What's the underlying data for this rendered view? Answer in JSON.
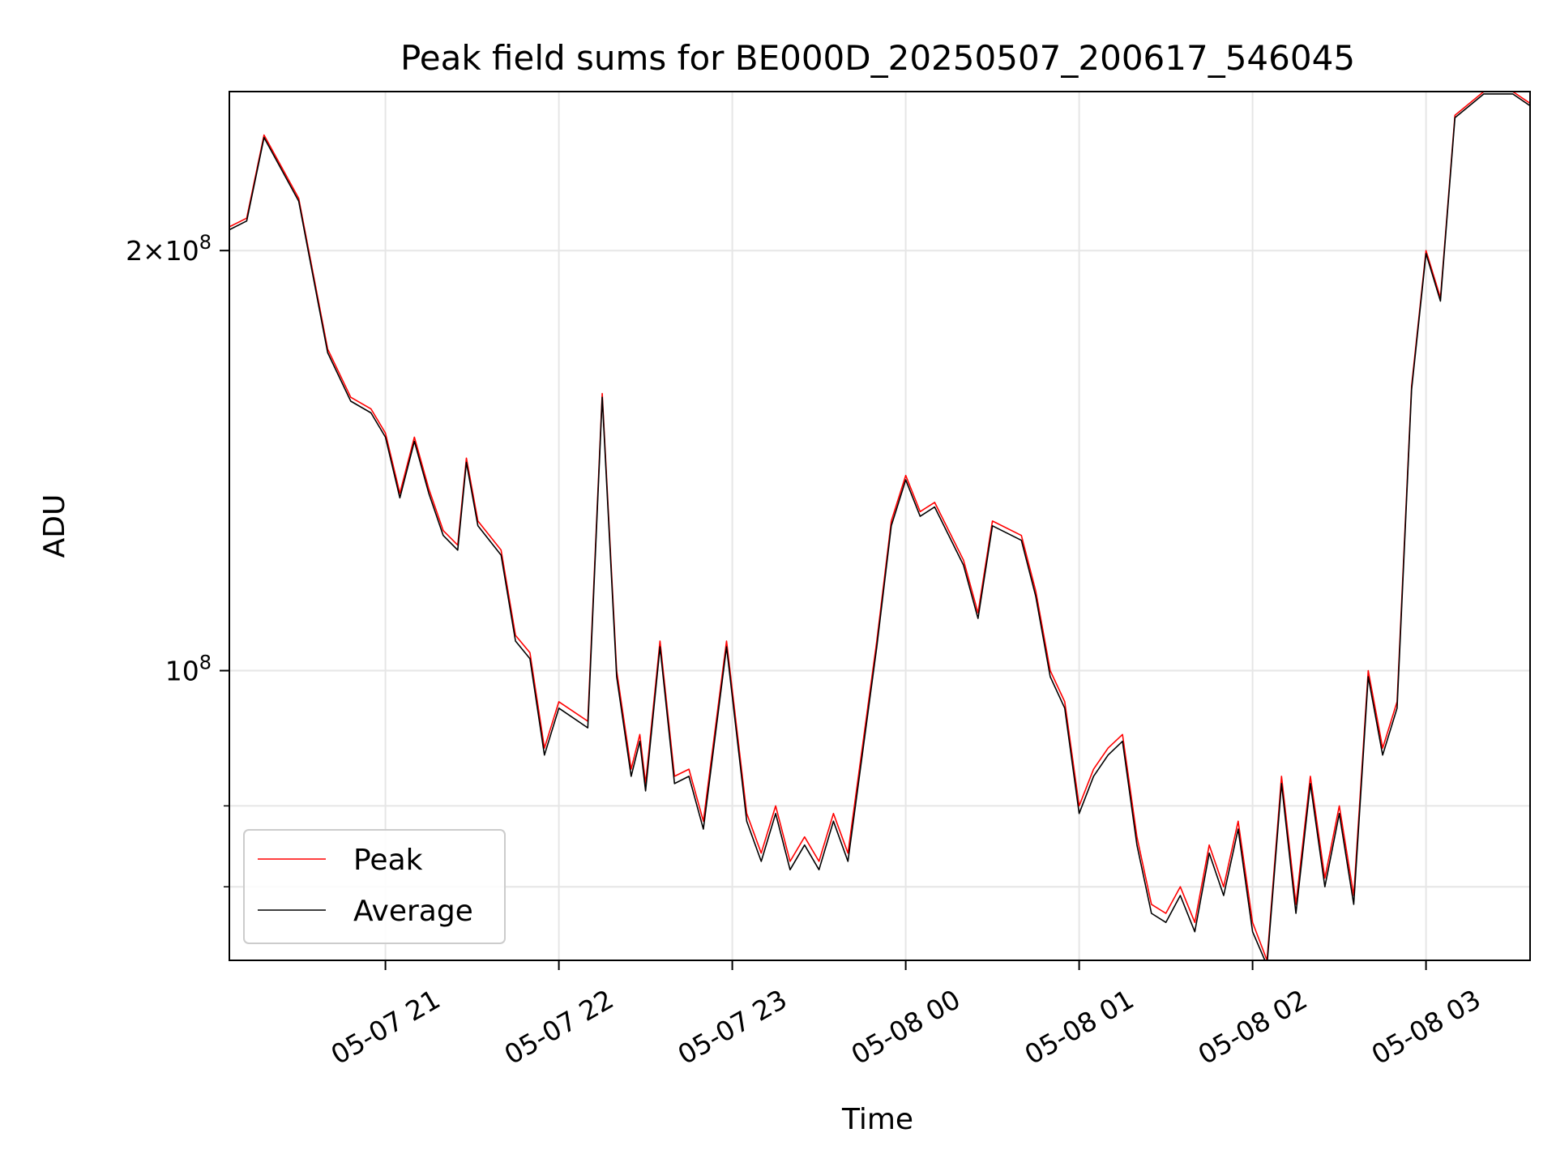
{
  "chart_data": {
    "type": "line",
    "title": "Peak field sums for BE000D_20250507_200617_546045",
    "xlabel": "Time",
    "ylabel": "ADU",
    "yscale": "log",
    "ylim": [
      62000000,
      260000000
    ],
    "xlim": [
      "2025-05-07 20:06",
      "2025-05-08 03:36"
    ],
    "grid": true,
    "legend_position": "lower-left",
    "x_ticks": [
      "05-07 21",
      "05-07 22",
      "05-07 23",
      "05-08 00",
      "05-08 01",
      "05-08 02",
      "05-08 03"
    ],
    "y_ticks": [
      {
        "value": 100000000,
        "base": "10",
        "exp": "8",
        "mantissa": ""
      },
      {
        "value": 200000000,
        "base": "10",
        "exp": "8",
        "mantissa": "2×"
      }
    ],
    "y_minor_ticks": [
      70000000,
      80000000
    ],
    "series": [
      {
        "name": "Peak",
        "color": "#ff0000"
      },
      {
        "name": "Average",
        "color": "#000000"
      }
    ],
    "x": [
      "20:06",
      "20:12",
      "20:18",
      "20:30",
      "20:40",
      "20:48",
      "20:55",
      "21:00",
      "21:05",
      "21:10",
      "21:15",
      "21:20",
      "21:25",
      "21:28",
      "21:32",
      "21:40",
      "21:45",
      "21:50",
      "21:55",
      "22:00",
      "22:10",
      "22:15",
      "22:20",
      "22:25",
      "22:28",
      "22:30",
      "22:35",
      "22:40",
      "22:45",
      "22:50",
      "22:58",
      "23:05",
      "23:10",
      "23:15",
      "23:20",
      "23:25",
      "23:30",
      "23:35",
      "23:40",
      "23:50",
      "23:55",
      "00:00",
      "00:05",
      "00:10",
      "00:20",
      "00:25",
      "00:30",
      "00:40",
      "00:45",
      "00:50",
      "00:55",
      "01:00",
      "01:05",
      "01:10",
      "01:15",
      "01:20",
      "01:25",
      "01:30",
      "01:35",
      "01:40",
      "01:45",
      "01:50",
      "01:55",
      "02:00",
      "02:05",
      "02:10",
      "02:15",
      "02:20",
      "02:25",
      "02:30",
      "02:35",
      "02:40",
      "02:45",
      "02:50",
      "02:55",
      "03:00",
      "03:05",
      "03:10",
      "03:20",
      "03:30",
      "03:36"
    ],
    "peak": [
      208000000,
      211000000,
      242000000,
      218000000,
      170000000,
      157000000,
      154000000,
      148000000,
      134000000,
      147000000,
      135000000,
      126000000,
      123000000,
      142000000,
      128000000,
      122000000,
      106000000,
      103000000,
      88000000,
      95000000,
      92000000,
      158000000,
      100000000,
      85000000,
      90000000,
      83000000,
      105000000,
      84000000,
      85000000,
      78000000,
      105000000,
      79000000,
      74000000,
      80000000,
      73000000,
      76000000,
      73000000,
      79000000,
      74000000,
      105000000,
      128000000,
      138000000,
      130000000,
      132000000,
      120000000,
      110000000,
      128000000,
      125000000,
      114000000,
      100000000,
      95000000,
      80000000,
      85000000,
      88000000,
      90000000,
      76000000,
      68000000,
      67000000,
      70000000,
      66000000,
      75000000,
      70000000,
      78000000,
      66000000,
      62000000,
      84000000,
      68000000,
      84000000,
      71000000,
      80000000,
      69000000,
      100000000,
      88000000,
      95000000,
      160000000,
      200000000,
      185000000,
      250000000,
      260000000,
      260000000,
      255000000
    ],
    "average": [
      207000000,
      210000000,
      241000000,
      217000000,
      169000000,
      156000000,
      153000000,
      147000000,
      133000000,
      146000000,
      134000000,
      125000000,
      122000000,
      141000000,
      127000000,
      121000000,
      105000000,
      102000000,
      87000000,
      94000000,
      91000000,
      157000000,
      99000000,
      84000000,
      89000000,
      82000000,
      104000000,
      83000000,
      84000000,
      77000000,
      104000000,
      78000000,
      73000000,
      79000000,
      72000000,
      75000000,
      72000000,
      78000000,
      73000000,
      104000000,
      127000000,
      137000000,
      129000000,
      131000000,
      119000000,
      109000000,
      127000000,
      124000000,
      113000000,
      99000000,
      94000000,
      79000000,
      84000000,
      87000000,
      89000000,
      75000000,
      67000000,
      66000000,
      69000000,
      65000000,
      74000000,
      69000000,
      77000000,
      65000000,
      61500000,
      83000000,
      67000000,
      83000000,
      70000000,
      79000000,
      68000000,
      99000000,
      87000000,
      94000000,
      159000000,
      199000000,
      184000000,
      249000000,
      259000000,
      259000000,
      254000000
    ]
  }
}
